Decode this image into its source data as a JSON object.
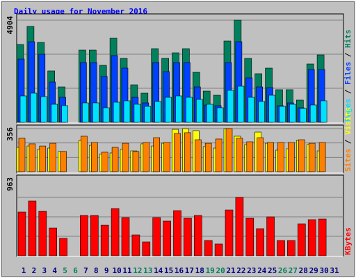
{
  "chart_data": [
    {
      "type": "bar",
      "title": "Daily usage for November 2016",
      "legend_separator": "/",
      "ylim": [
        0,
        4904
      ],
      "yticks": [
        4904
      ],
      "series": [
        {
          "name": "Hits",
          "color": "#00805c",
          "values": [
            3736,
            4604,
            3836,
            2469,
            1701,
            null,
            3469,
            3469,
            2736,
            4037,
            3069,
            1801,
            1401,
            3536,
            3069,
            3336,
            3536,
            2402,
            1501,
            1301,
            3903,
            4904,
            3069,
            2335,
            2602,
            1568,
            1568,
            1068,
            2802,
            3236,
            null
          ]
        },
        {
          "name": "Files",
          "color": "#0040ff",
          "values": [
            3036,
            3870,
            3269,
            1935,
            1201,
            null,
            2869,
            2869,
            2202,
            3203,
            2602,
            1201,
            934,
            2869,
            2435,
            2869,
            2869,
            1701,
            834,
            801,
            2869,
            3870,
            2135,
            1701,
            1668,
            801,
            934,
            701,
            2535,
            2535,
            null
          ]
        },
        {
          "name": "Pages",
          "color": "#00e0ff",
          "values": [
            1268,
            1401,
            1234,
            867,
            801,
            null,
            934,
            934,
            701,
            967,
            1034,
            867,
            767,
            1001,
            1201,
            1268,
            1201,
            1101,
            867,
            701,
            1535,
            1735,
            1201,
            1001,
            1301,
            767,
            867,
            667,
            834,
            1034,
            null
          ]
        }
      ]
    },
    {
      "type": "bar",
      "legend_separator": "/",
      "ylim": [
        0,
        356
      ],
      "yticks": [
        356
      ],
      "series": [
        {
          "name": "Visits",
          "color": "#ffff00",
          "values": [
            201,
            212,
            184,
            195,
            167,
            null,
            258,
            218,
            144,
            155,
            184,
            172,
            230,
            212,
            235,
            350,
            355,
            339,
            207,
            195,
            355,
            293,
            224,
            327,
            235,
            178,
            189,
            258,
            224,
            172,
            null
          ]
        },
        {
          "name": "Sites",
          "color": "#ff8000",
          "values": [
            276,
            230,
            212,
            235,
            167,
            null,
            293,
            241,
            161,
            201,
            235,
            167,
            241,
            281,
            241,
            316,
            322,
            264,
            235,
            270,
            356,
            276,
            247,
            281,
            241,
            241,
            241,
            264,
            235,
            241,
            null
          ]
        }
      ]
    },
    {
      "type": "bar",
      "ylim": [
        0,
        963
      ],
      "yticks": [
        963
      ],
      "categories": [
        "1",
        "2",
        "3",
        "4",
        "5",
        "6",
        "7",
        "8",
        "9",
        "10",
        "11",
        "12",
        "13",
        "14",
        "15",
        "16",
        "17",
        "18",
        "19",
        "20",
        "21",
        "22",
        "23",
        "24",
        "25",
        "26",
        "27",
        "28",
        "29",
        "30",
        "31"
      ],
      "category_colors": [
        "#000080",
        "#000080",
        "#000080",
        "#000080",
        "#00805c",
        "#00805c",
        "#000080",
        "#000080",
        "#000080",
        "#000080",
        "#000080",
        "#00805c",
        "#00805c",
        "#000080",
        "#000080",
        "#000080",
        "#000080",
        "#000080",
        "#00805c",
        "#00805c",
        "#000080",
        "#000080",
        "#000080",
        "#000080",
        "#000080",
        "#00805c",
        "#00805c",
        "#000080",
        "#000080",
        "#000080",
        "#000080"
      ],
      "series": [
        {
          "name": "KBytes",
          "color": "#ff0000",
          "values": [
            722,
            905,
            733,
            458,
            287,
            null,
            665,
            665,
            504,
            779,
            630,
            344,
            229,
            630,
            573,
            745,
            619,
            665,
            252,
            195,
            756,
            963,
            619,
            447,
            642,
            252,
            252,
            527,
            596,
            607,
            null
          ]
        }
      ]
    }
  ]
}
